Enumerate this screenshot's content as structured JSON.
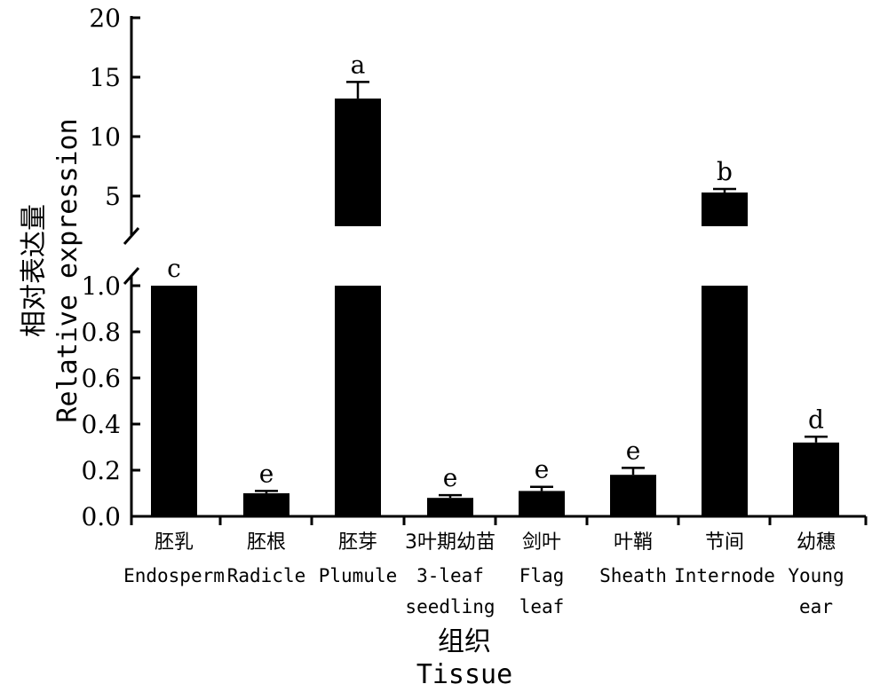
{
  "chart_data": {
    "type": "bar",
    "broken_axis": true,
    "ylabel_zh": "相对表达量",
    "ylabel_en": "Relative expression",
    "xlabel_zh": "组织",
    "xlabel_en": "Tissue",
    "lower_ylim": [
      0,
      1.0
    ],
    "upper_ylim": [
      0,
      20
    ],
    "lower_ticks": [
      "0.0",
      "0.2",
      "0.4",
      "0.6",
      "0.8",
      "1.0"
    ],
    "upper_ticks": [
      "5",
      "10",
      "15",
      "20"
    ],
    "categories": [
      {
        "zh": "胚乳",
        "en": [
          "Endosperm"
        ]
      },
      {
        "zh": "胚根",
        "en": [
          "Radicle"
        ]
      },
      {
        "zh": "胚芽",
        "en": [
          "Plumule"
        ]
      },
      {
        "zh": "3叶期幼苗",
        "en": [
          "3-leaf",
          "seedling"
        ]
      },
      {
        "zh": "剑叶",
        "en": [
          "Flag",
          "leaf"
        ]
      },
      {
        "zh": "叶鞘",
        "en": [
          "Sheath"
        ]
      },
      {
        "zh": "节间",
        "en": [
          "Internode"
        ]
      },
      {
        "zh": "幼穗",
        "en": [
          "Young",
          "ear"
        ]
      }
    ],
    "values": [
      1.0,
      0.1,
      13.2,
      0.08,
      0.11,
      0.18,
      5.3,
      0.32
    ],
    "errors": [
      0,
      0.01,
      1.4,
      0.012,
      0.018,
      0.03,
      0.3,
      0.025
    ],
    "significance": [
      "c",
      "e",
      "a",
      "e",
      "e",
      "e",
      "b",
      "d"
    ],
    "bar_color": "#000000"
  }
}
